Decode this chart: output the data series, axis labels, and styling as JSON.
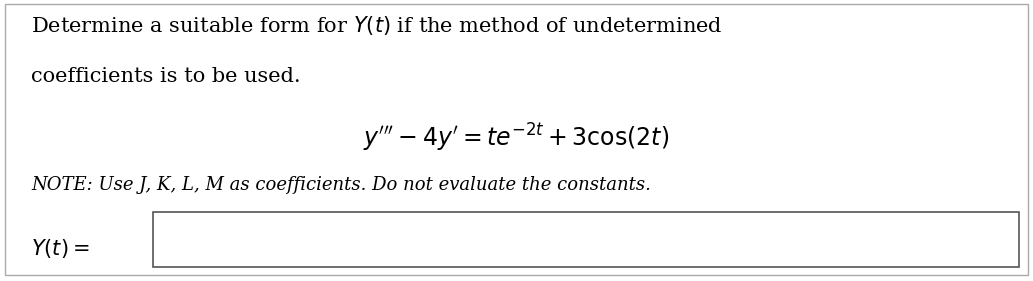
{
  "background_color": "#ffffff",
  "title_line1": "Determine a suitable form for $Y(t)$ if the method of undetermined",
  "title_line2": "coefficients is to be used.",
  "equation": "$y^{\\prime\\prime\\prime} - 4y^{\\prime} = te^{-2t} + 3\\cos(2t)$",
  "note_plain": "NOTE: Use J, K, L, M as coefficients. Do not evaluate the constants.",
  "answer_label": "$Y(t) =$",
  "text_color": "#000000",
  "font_size_main": 15,
  "font_size_eq": 17,
  "font_size_note": 13,
  "font_size_answer": 15
}
